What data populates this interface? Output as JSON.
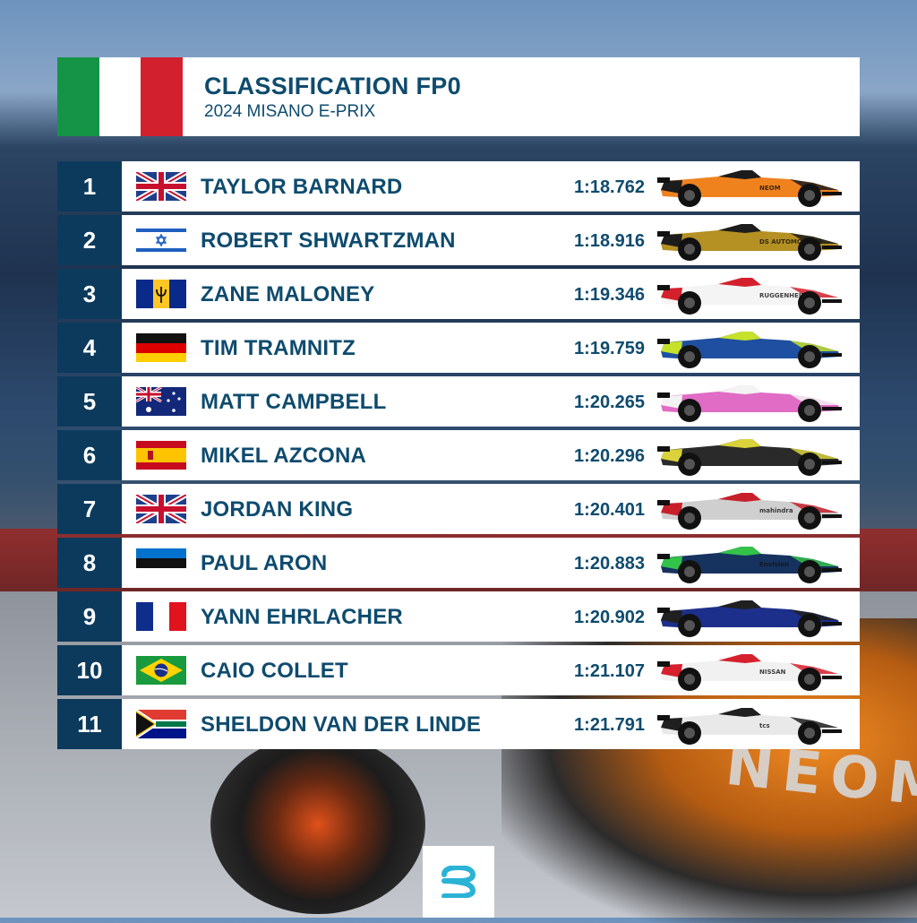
{
  "header": {
    "title": "CLASSIFICATION FP0",
    "subtitle": "2024 MISANO E-PRIX",
    "flag_icon": "italy-flag-icon",
    "flag_colors": [
      "#159447",
      "#ffffff",
      "#d3202f"
    ]
  },
  "theme": {
    "navy": "#0c3a5c",
    "text": "#0e4b6e"
  },
  "results": [
    {
      "pos": "1",
      "driver": "TAYLOR BARNARD",
      "time": "1:18.762",
      "flag": "gb",
      "car": {
        "body": "#f0821e",
        "accent": "#1c1c1c",
        "text": "NEOM"
      }
    },
    {
      "pos": "2",
      "driver": "ROBERT SHWARTZMAN",
      "time": "1:18.916",
      "flag": "il",
      "car": {
        "body": "#b59022",
        "accent": "#1c1c1c",
        "text": "DS AUTOMOBILES"
      }
    },
    {
      "pos": "3",
      "driver": "ZANE MALONEY",
      "time": "1:19.346",
      "flag": "bb",
      "car": {
        "body": "#f4f4f4",
        "accent": "#d4202c",
        "text": "RUGGENHEIT"
      }
    },
    {
      "pos": "4",
      "driver": "TIM TRAMNITZ",
      "time": "1:19.759",
      "flag": "de",
      "car": {
        "body": "#1e4fa0",
        "accent": "#c6e12a",
        "text": ""
      }
    },
    {
      "pos": "5",
      "driver": "MATT CAMPBELL",
      "time": "1:20.265",
      "flag": "au",
      "car": {
        "body": "#e06cc5",
        "accent": "#f3f3f3",
        "text": ""
      }
    },
    {
      "pos": "6",
      "driver": "MIKEL AZCONA",
      "time": "1:20.296",
      "flag": "es",
      "car": {
        "body": "#2a2a2a",
        "accent": "#d9d23a",
        "text": ""
      }
    },
    {
      "pos": "7",
      "driver": "JORDAN KING",
      "time": "1:20.401",
      "flag": "gb",
      "car": {
        "body": "#cfcfcf",
        "accent": "#c8202a",
        "text": "mahindra"
      }
    },
    {
      "pos": "8",
      "driver": "PAUL ARON",
      "time": "1:20.883",
      "flag": "ee",
      "car": {
        "body": "#16325e",
        "accent": "#33c24a",
        "text": "Envision"
      }
    },
    {
      "pos": "9",
      "driver": "YANN EHRLACHER",
      "time": "1:20.902",
      "flag": "fr",
      "car": {
        "body": "#1c2f8a",
        "accent": "#202020",
        "text": ""
      }
    },
    {
      "pos": "10",
      "driver": "CAIO COLLET",
      "time": "1:21.107",
      "flag": "br",
      "car": {
        "body": "#f1f1f1",
        "accent": "#d6202e",
        "text": "NISSAN"
      }
    },
    {
      "pos": "11",
      "driver": "SHELDON VAN DER LINDE",
      "time": "1:21.791",
      "flag": "za",
      "car": {
        "body": "#e9e9e9",
        "accent": "#1f1f1f",
        "text": "tcs"
      }
    }
  ],
  "logo": {
    "icon": "formula-e-logo-icon",
    "color": "#2bb3d6"
  }
}
